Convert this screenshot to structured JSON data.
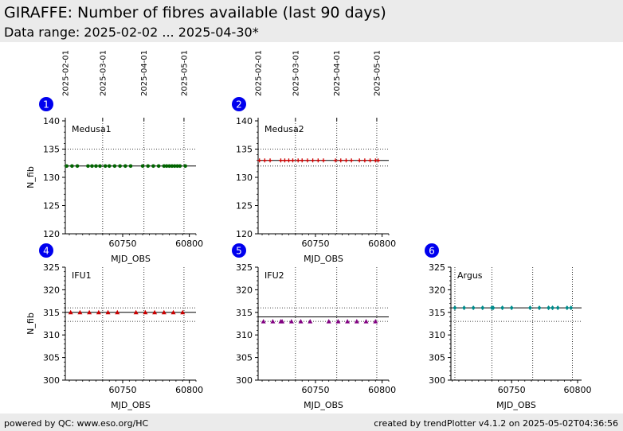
{
  "header": {
    "title": "GIRAFFE: Number of fibres available (last 90 days)",
    "subtitle": "Data range: 2025-02-02 ... 2025-04-30*"
  },
  "footer": {
    "left": "powered by QC: www.eso.org/HC",
    "right": "created by trendPlotter v4.1.2 on 2025-05-02T04:36:56"
  },
  "colors": {
    "header_bg": "#ebebeb",
    "badge": "#0000ee",
    "green": "#006400",
    "red": "#cc0000",
    "purple": "#800080",
    "teal": "#008b8b"
  },
  "chart_data": [
    {
      "type": "scatter",
      "id": "1",
      "panel_label": "Medusa1",
      "marker": "circle",
      "color": "#006400",
      "xlabel": "MJD_OBS",
      "ylabel": "N_fib",
      "xlim": [
        60707,
        60805
      ],
      "ylim": [
        120,
        140
      ],
      "x_ticks": [
        60750,
        60800
      ],
      "y_ticks": [
        120,
        125,
        130,
        135,
        140
      ],
      "date_ticks": [
        {
          "label": "2025-02-01",
          "mjd": 60707
        },
        {
          "label": "2025-03-01",
          "mjd": 60735
        },
        {
          "label": "2025-04-01",
          "mjd": 60766
        },
        {
          "label": "2025-05-01",
          "mjd": 60796
        }
      ],
      "ref_line": 132,
      "dotted_lines": [
        135
      ],
      "x": [
        60708,
        60712,
        60716,
        60724,
        60727,
        60730,
        60733,
        60737,
        60740,
        60744,
        60748,
        60752,
        60756,
        60765,
        60769,
        60773,
        60777,
        60781,
        60783,
        60785,
        60787,
        60789,
        60791,
        60793,
        60797
      ],
      "y": [
        132,
        132,
        132,
        132,
        132,
        132,
        132,
        132,
        132,
        132,
        132,
        132,
        132,
        132,
        132,
        132,
        132,
        132,
        132,
        132,
        132,
        132,
        132,
        132,
        132
      ]
    },
    {
      "type": "scatter",
      "id": "2",
      "panel_label": "Medusa2",
      "marker": "plus",
      "color": "#cc0000",
      "xlabel": "MJD_OBS",
      "ylabel": "",
      "xlim": [
        60707,
        60805
      ],
      "ylim": [
        120,
        140
      ],
      "x_ticks": [
        60750,
        60800
      ],
      "y_ticks": [
        120,
        125,
        130,
        135,
        140
      ],
      "date_ticks": [
        {
          "label": "2025-02-01",
          "mjd": 60707
        },
        {
          "label": "2025-03-01",
          "mjd": 60735
        },
        {
          "label": "2025-04-01",
          "mjd": 60766
        },
        {
          "label": "2025-05-01",
          "mjd": 60796
        }
      ],
      "ref_line": 133,
      "dotted_lines": [
        135,
        132
      ],
      "x": [
        60708,
        60712,
        60716,
        60724,
        60727,
        60730,
        60733,
        60737,
        60740,
        60744,
        60748,
        60752,
        60756,
        60765,
        60769,
        60773,
        60777,
        60783,
        60787,
        60791,
        60795,
        60797
      ],
      "y": [
        133,
        133,
        133,
        133,
        133,
        133,
        133,
        133,
        133,
        133,
        133,
        133,
        133,
        133,
        133,
        133,
        133,
        133,
        133,
        133,
        133,
        133
      ]
    },
    {
      "type": "scatter",
      "id": "4",
      "panel_label": "IFU1",
      "marker": "triangle",
      "color": "#cc0000",
      "xlabel": "MJD_OBS",
      "ylabel": "N_fib",
      "xlim": [
        60707,
        60805
      ],
      "ylim": [
        300,
        325
      ],
      "x_ticks": [
        60750,
        60800
      ],
      "y_ticks": [
        300,
        305,
        310,
        315,
        320,
        325
      ],
      "date_ticks": [
        {
          "label": "2025-02-01",
          "mjd": 60707
        },
        {
          "label": "2025-03-01",
          "mjd": 60735
        },
        {
          "label": "2025-04-01",
          "mjd": 60766
        },
        {
          "label": "2025-05-01",
          "mjd": 60796
        }
      ],
      "ref_line": 315,
      "dotted_lines": [
        316,
        313
      ],
      "x": [
        60711,
        60718,
        60725,
        60732,
        60739,
        60746,
        60760,
        60767,
        60774,
        60781,
        60788,
        60795
      ],
      "y": [
        315,
        315,
        315,
        315,
        315,
        315,
        315,
        315,
        315,
        315,
        315,
        315
      ]
    },
    {
      "type": "scatter",
      "id": "5",
      "panel_label": "IFU2",
      "marker": "triangle",
      "color": "#800080",
      "xlabel": "MJD_OBS",
      "ylabel": "",
      "xlim": [
        60707,
        60805
      ],
      "ylim": [
        300,
        325
      ],
      "x_ticks": [
        60750,
        60800
      ],
      "y_ticks": [
        300,
        305,
        310,
        315,
        320,
        325
      ],
      "date_ticks": [
        {
          "label": "2025-02-01",
          "mjd": 60707
        },
        {
          "label": "2025-03-01",
          "mjd": 60735
        },
        {
          "label": "2025-04-01",
          "mjd": 60766
        },
        {
          "label": "2025-05-01",
          "mjd": 60796
        }
      ],
      "ref_line": 314,
      "dotted_lines": [
        316,
        313
      ],
      "x": [
        60711,
        60718,
        60724,
        60725,
        60732,
        60739,
        60746,
        60760,
        60767,
        60774,
        60781,
        60788,
        60795
      ],
      "y": [
        313,
        313,
        313,
        313,
        313,
        313,
        313,
        313,
        313,
        313,
        313,
        313,
        313
      ]
    },
    {
      "type": "scatter",
      "id": "6",
      "panel_label": "Argus",
      "marker": "diamond",
      "color": "#008b8b",
      "xlabel": "MJD_OBS",
      "ylabel": "",
      "xlim": [
        60704,
        60803
      ],
      "ylim": [
        300,
        325
      ],
      "x_ticks": [
        60750,
        60800
      ],
      "y_ticks": [
        300,
        305,
        310,
        315,
        320,
        325
      ],
      "date_ticks": [
        {
          "label": "2025-02-01",
          "mjd": 60707
        },
        {
          "label": "2025-03-01",
          "mjd": 60735
        },
        {
          "label": "2025-04-01",
          "mjd": 60766
        },
        {
          "label": "2025-05-01",
          "mjd": 60796
        }
      ],
      "ref_line": 316,
      "dotted_lines": [
        313
      ],
      "x": [
        60707,
        60714,
        60721,
        60728,
        60735,
        60736,
        60743,
        60750,
        60764,
        60771,
        60778,
        60781,
        60785,
        60792,
        60795
      ],
      "y": [
        316,
        316,
        316,
        316,
        316,
        316,
        316,
        316,
        316,
        316,
        316,
        316,
        316,
        316,
        316
      ]
    }
  ]
}
